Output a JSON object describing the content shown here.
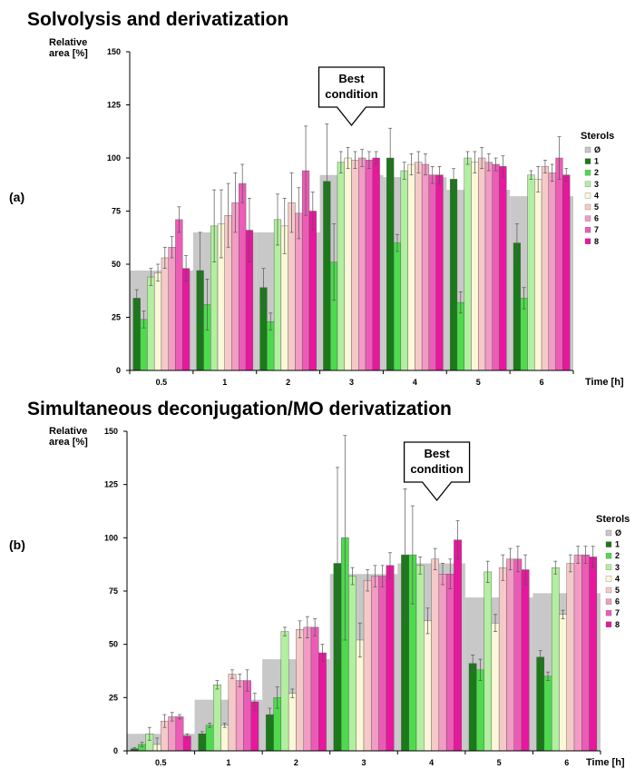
{
  "chart_data": [
    {
      "type": "bar",
      "panel_label": "(a)",
      "title": "Solvolysis and derivatization",
      "ylabel": "Relative area [%]",
      "xlabel": "Time [h]",
      "ylim": [
        0,
        150
      ],
      "yticks": [
        0,
        25,
        50,
        75,
        100,
        125,
        150
      ],
      "categories": [
        "0.5",
        "1",
        "2",
        "3",
        "4",
        "5",
        "6"
      ],
      "callout": {
        "text": [
          "Best",
          "condition"
        ],
        "category": "3"
      },
      "legend": {
        "title": "Sterols",
        "position": "right"
      },
      "background": {
        "name": "Ø",
        "color": "#c8c8c8",
        "values": [
          47,
          65,
          65,
          92,
          91,
          85,
          82
        ]
      },
      "series": [
        {
          "name": "1",
          "color": "#1a7a1a",
          "values": [
            34,
            47,
            39,
            89,
            100,
            90,
            60
          ],
          "errors": [
            4,
            18,
            9,
            27,
            14,
            5,
            9
          ]
        },
        {
          "name": "2",
          "color": "#4ddb4d",
          "values": [
            24,
            31,
            23,
            51,
            60,
            32,
            34
          ],
          "errors": [
            4,
            12,
            4,
            18,
            4,
            5,
            5
          ]
        },
        {
          "name": "3",
          "color": "#b2efa0",
          "values": [
            44,
            68,
            71,
            98,
            94,
            100,
            92
          ],
          "errors": [
            4,
            17,
            12,
            5,
            4,
            3,
            2
          ]
        },
        {
          "name": "4",
          "color": "#fbf7d8",
          "values": [
            46,
            69,
            68,
            100,
            97,
            98,
            90
          ],
          "errors": [
            4,
            16,
            13,
            5,
            5,
            5,
            6
          ]
        },
        {
          "name": "5",
          "color": "#f6c9c9",
          "values": [
            53,
            73,
            79,
            99,
            98,
            100,
            96
          ],
          "errors": [
            5,
            15,
            14,
            4,
            5,
            5,
            3
          ]
        },
        {
          "name": "6",
          "color": "#f29bc4",
          "values": [
            58,
            79,
            74,
            100,
            97,
            98,
            93
          ],
          "errors": [
            5,
            14,
            12,
            4,
            5,
            4,
            4
          ]
        },
        {
          "name": "7",
          "color": "#ec5cb6",
          "values": [
            71,
            88,
            94,
            99,
            92,
            97,
            100
          ],
          "errors": [
            6,
            9,
            21,
            4,
            4,
            3,
            10
          ]
        },
        {
          "name": "8",
          "color": "#e8179e",
          "values": [
            48,
            66,
            75,
            100,
            92,
            96,
            92
          ],
          "errors": [
            6,
            15,
            9,
            3,
            4,
            5,
            3
          ]
        }
      ]
    },
    {
      "type": "bar",
      "panel_label": "(b)",
      "title": "Simultaneous deconjugation/MO derivatization",
      "ylabel": "Relative area [%]",
      "xlabel": "Time [h]",
      "ylim": [
        0,
        150
      ],
      "yticks": [
        0,
        25,
        50,
        75,
        100,
        125,
        150
      ],
      "categories": [
        "0.5",
        "1",
        "2",
        "3",
        "4",
        "5",
        "6"
      ],
      "callout": {
        "text": [
          "Best",
          "condition"
        ],
        "category": "4"
      },
      "legend": {
        "title": "Sterols",
        "position": "right"
      },
      "background": {
        "name": "Ø",
        "color": "#c8c8c8",
        "values": [
          8,
          24,
          43,
          83,
          88,
          72,
          74
        ]
      },
      "series": [
        {
          "name": "1",
          "color": "#1a7a1a",
          "values": [
            1,
            8,
            17,
            88,
            92,
            41,
            44
          ],
          "errors": [
            0.5,
            1,
            3,
            45,
            31,
            4,
            3
          ]
        },
        {
          "name": "2",
          "color": "#4ddb4d",
          "values": [
            3,
            12,
            25,
            100,
            92,
            38,
            35
          ],
          "errors": [
            1,
            1,
            5,
            48,
            23,
            5,
            2
          ]
        },
        {
          "name": "3",
          "color": "#b2efa0",
          "values": [
            8,
            31,
            56,
            82,
            87,
            84,
            86
          ],
          "errors": [
            3,
            2,
            2,
            4,
            4,
            5,
            3
          ]
        },
        {
          "name": "4",
          "color": "#fbf7d8",
          "values": [
            3,
            12,
            27,
            52,
            61,
            60,
            64
          ],
          "errors": [
            3,
            1,
            2,
            8,
            6,
            4,
            2
          ]
        },
        {
          "name": "5",
          "color": "#f6c9c9",
          "values": [
            14,
            36,
            57,
            80,
            90,
            86,
            88
          ],
          "errors": [
            3,
            2,
            4,
            5,
            5,
            6,
            4
          ]
        },
        {
          "name": "6",
          "color": "#f29bc4",
          "values": [
            16,
            33,
            58,
            82,
            83,
            90,
            92
          ],
          "errors": [
            2,
            3,
            5,
            5,
            5,
            5,
            4
          ]
        },
        {
          "name": "7",
          "color": "#ec5cb6",
          "values": [
            16,
            33,
            58,
            82,
            83,
            90,
            92
          ],
          "errors": [
            1,
            5,
            4,
            5,
            7,
            6,
            4
          ]
        },
        {
          "name": "8",
          "color": "#e8179e",
          "values": [
            7,
            23,
            46,
            87,
            99,
            85,
            91
          ],
          "errors": [
            1,
            4,
            4,
            6,
            9,
            7,
            5
          ]
        }
      ]
    }
  ]
}
